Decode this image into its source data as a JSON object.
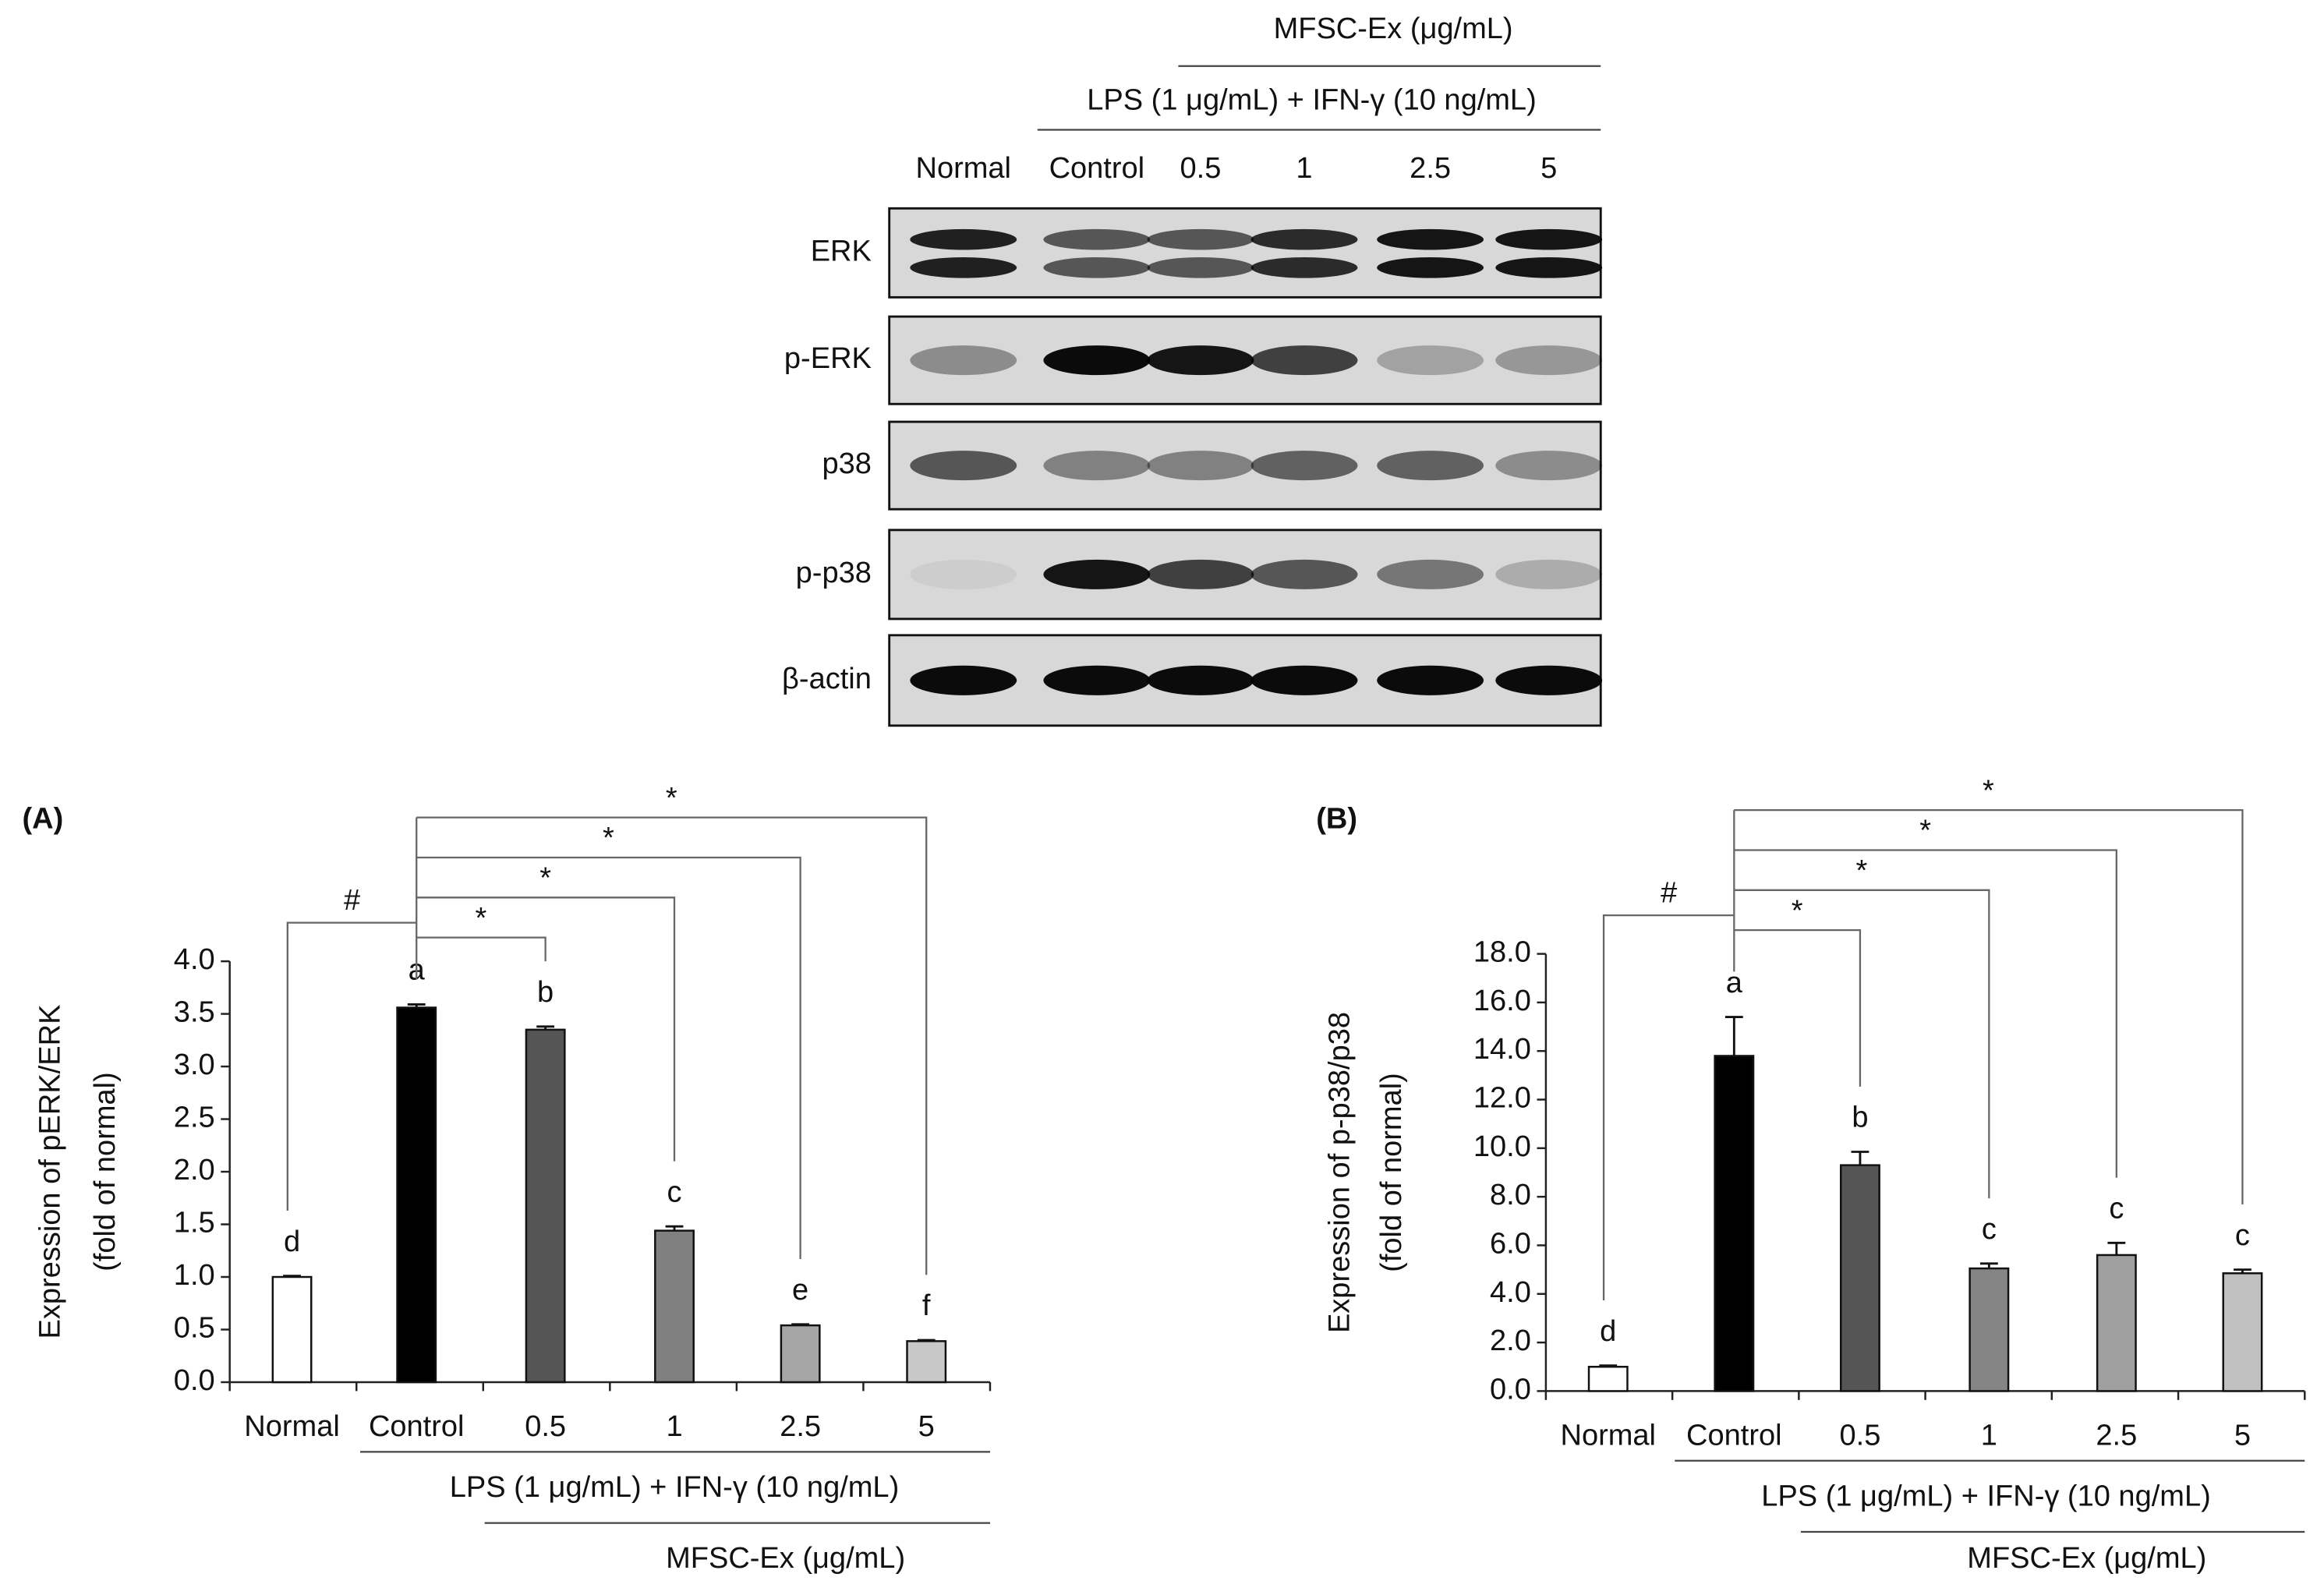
{
  "blot": {
    "header_top": "MFSC-Ex (μg/mL)",
    "header_mid": "LPS (1 μg/mL) + IFN-γ (10 ng/mL)",
    "lanes": [
      "Normal",
      "Control",
      "0.5",
      "1",
      "2.5",
      "5"
    ],
    "rows": [
      "ERK",
      "p-ERK",
      "p38",
      "p-p38",
      "β-actin"
    ]
  },
  "chart_data": [
    {
      "type": "bar",
      "panel_label": "(A)",
      "ylabel": [
        "Expression of pERK/ERK",
        "(fold of normal)"
      ],
      "categories": [
        "Normal",
        "Control",
        "0.5",
        "1",
        "2.5",
        "5"
      ],
      "values": [
        1.0,
        3.56,
        3.35,
        1.44,
        0.54,
        0.39
      ],
      "errors": [
        0.01,
        0.03,
        0.03,
        0.04,
        0.01,
        0.01
      ],
      "colors": [
        "#ffffff",
        "#000000",
        "#555555",
        "#808080",
        "#a6a6a6",
        "#c8c8c8"
      ],
      "letters": [
        "d",
        "a",
        "b",
        "c",
        "e",
        "f"
      ],
      "ylim": [
        0,
        4
      ],
      "yticks": [
        {
          "value": 0,
          "label": "0.0"
        },
        {
          "value": 0.5,
          "label": "0.5"
        },
        {
          "value": 1,
          "label": "1.0"
        },
        {
          "value": 1.5,
          "label": "1.5"
        },
        {
          "value": 2,
          "label": "2.0"
        },
        {
          "value": 2.5,
          "label": "2.5"
        },
        {
          "value": 3,
          "label": "3.0"
        },
        {
          "value": 3.5,
          "label": "3.5"
        },
        {
          "value": 4,
          "label": "4.0"
        }
      ],
      "group_labels": [
        "LPS (1 μg/mL) + IFN-γ (10 ng/mL)",
        "MFSC-Ex (μg/mL)"
      ],
      "significance": [
        "#",
        "*",
        "*",
        "*",
        "*"
      ]
    },
    {
      "type": "bar",
      "panel_label": "(B)",
      "ylabel": [
        "Expression of p-p38/p38",
        "(fold of normal)"
      ],
      "categories": [
        "Normal",
        "Control",
        "0.5",
        "1",
        "2.5",
        "5"
      ],
      "values": [
        1.0,
        13.8,
        9.3,
        5.05,
        5.6,
        4.85
      ],
      "errors": [
        0.05,
        1.6,
        0.55,
        0.2,
        0.5,
        0.15
      ],
      "colors": [
        "#ffffff",
        "#000000",
        "#555555",
        "#858585",
        "#a0a0a0",
        "#c0c0c0"
      ],
      "letters": [
        "d",
        "a",
        "b",
        "c",
        "c",
        "c"
      ],
      "ylim": [
        0,
        18
      ],
      "yticks": [
        {
          "value": 0,
          "label": "0.0"
        },
        {
          "value": 2,
          "label": "2.0"
        },
        {
          "value": 4,
          "label": "4.0"
        },
        {
          "value": 6,
          "label": "6.0"
        },
        {
          "value": 8,
          "label": "8.0"
        },
        {
          "value": 10,
          "label": "10.0"
        },
        {
          "value": 12,
          "label": "12.0"
        },
        {
          "value": 14,
          "label": "14.0"
        },
        {
          "value": 16,
          "label": "16.0"
        },
        {
          "value": 18,
          "label": "18.0"
        }
      ],
      "group_labels": [
        "LPS (1 μg/mL) + IFN-γ (10 ng/mL)",
        "MFSC-Ex (μg/mL)"
      ],
      "significance": [
        "#",
        "*",
        "*",
        "*",
        "*"
      ]
    }
  ]
}
